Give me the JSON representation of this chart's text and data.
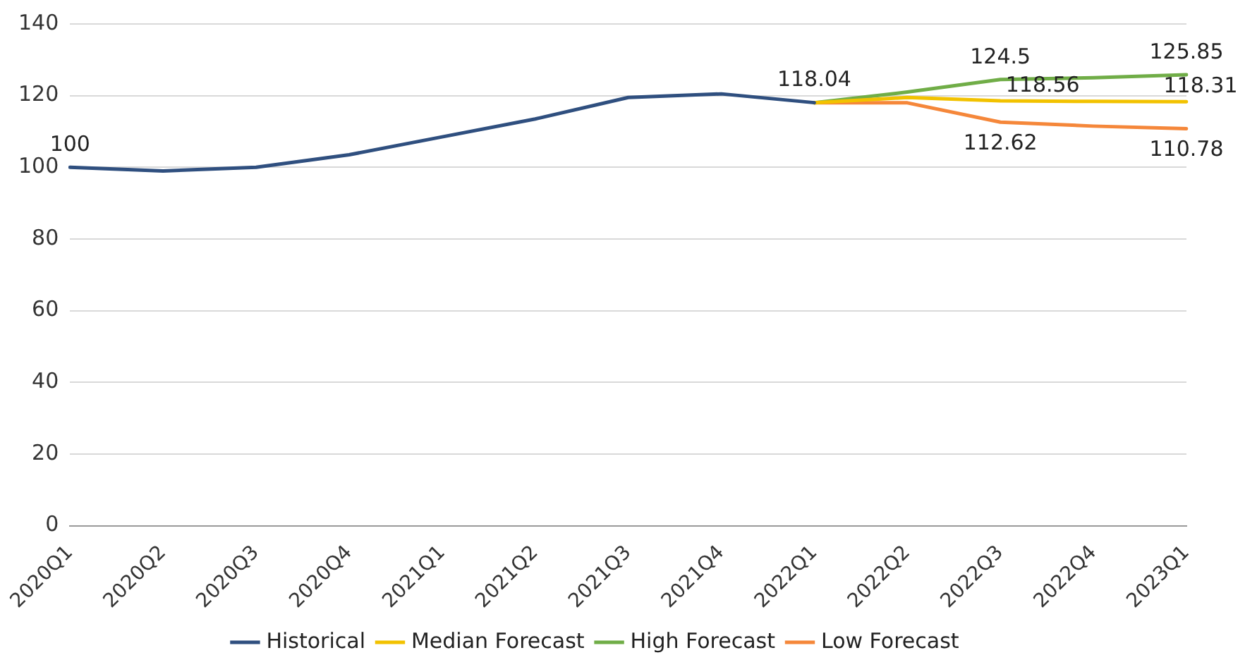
{
  "chart_data": {
    "type": "line",
    "categories": [
      "2020Q1",
      "2020Q2",
      "2020Q3",
      "2020Q4",
      "2021Q1",
      "2021Q2",
      "2021Q3",
      "2021Q4",
      "2022Q1",
      "2022Q2",
      "2022Q3",
      "2022Q4",
      "2023Q1"
    ],
    "series": [
      {
        "name": "Historical",
        "color": "#2f4f7f",
        "values": [
          100,
          99,
          100,
          103.5,
          108.5,
          113.5,
          119.5,
          120.5,
          118.04,
          null,
          null,
          null,
          null
        ],
        "value_labels": [
          "100",
          null,
          null,
          null,
          null,
          null,
          null,
          null,
          "118.04",
          null,
          null,
          null,
          null
        ]
      },
      {
        "name": "Median Forecast",
        "color": "#f2c200",
        "values": [
          null,
          null,
          null,
          null,
          null,
          null,
          null,
          null,
          118,
          119.5,
          118.56,
          118.4,
          118.31
        ],
        "value_labels": [
          null,
          null,
          null,
          null,
          null,
          null,
          null,
          null,
          null,
          null,
          "118.56",
          null,
          "118.31"
        ]
      },
      {
        "name": "High Forecast",
        "color": "#70ad47",
        "values": [
          null,
          null,
          null,
          null,
          null,
          null,
          null,
          null,
          118,
          121,
          124.5,
          125,
          125.85
        ],
        "value_labels": [
          null,
          null,
          null,
          null,
          null,
          null,
          null,
          null,
          null,
          null,
          "124.5",
          null,
          "125.85"
        ]
      },
      {
        "name": "Low Forecast",
        "color": "#f5873a",
        "values": [
          null,
          null,
          null,
          null,
          null,
          null,
          null,
          null,
          118,
          118,
          112.62,
          111.5,
          110.78
        ],
        "value_labels": [
          null,
          null,
          null,
          null,
          null,
          null,
          null,
          null,
          null,
          null,
          "112.62",
          null,
          "110.78"
        ]
      }
    ],
    "ylim": [
      0,
      140
    ],
    "yticks": [
      0,
      20,
      40,
      60,
      80,
      100,
      120,
      140
    ],
    "grid": "y",
    "legend": "bottom",
    "marker": "none",
    "line_style": "solid"
  }
}
